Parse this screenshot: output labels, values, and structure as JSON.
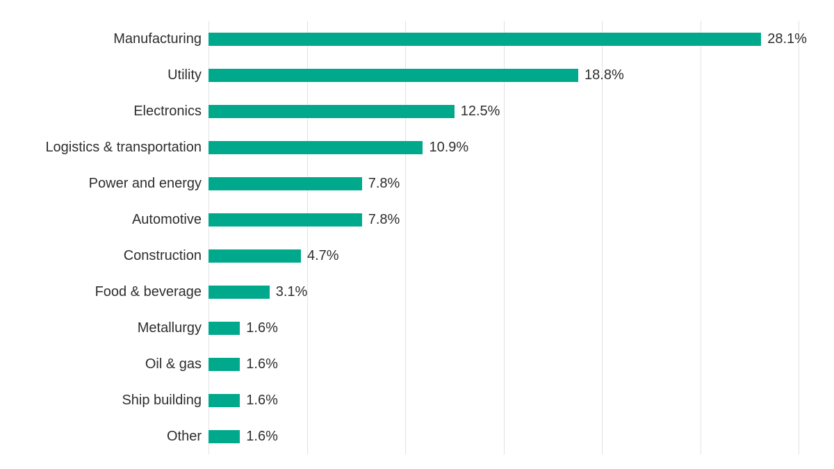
{
  "chart_data": {
    "type": "bar",
    "orientation": "horizontal",
    "title": "",
    "xlabel": "",
    "ylabel": "",
    "categories": [
      "Manufacturing",
      "Utility",
      "Electronics",
      "Logistics & transportation",
      "Power and energy",
      "Automotive",
      "Construction",
      "Food & beverage",
      "Metallurgy",
      "Oil & gas",
      "Ship building",
      "Other"
    ],
    "values": [
      28.1,
      18.8,
      12.5,
      10.9,
      7.8,
      7.8,
      4.7,
      3.1,
      1.6,
      1.6,
      1.6,
      1.6
    ],
    "value_labels": [
      "28.1%",
      "18.8%",
      "12.5%",
      "10.9%",
      "7.8%",
      "7.8%",
      "4.7%",
      "3.1%",
      "1.6%",
      "1.6%",
      "1.6%",
      "1.6%"
    ],
    "xlim": [
      0,
      30
    ],
    "gridline_interval": 5,
    "grid": true,
    "legend_position": "none",
    "axis_tick_labels_shown": false,
    "colors": {
      "bar": "#00a88c",
      "grid": "#e2e2e2",
      "text": "#2d2d2d",
      "background": "#ffffff"
    }
  }
}
